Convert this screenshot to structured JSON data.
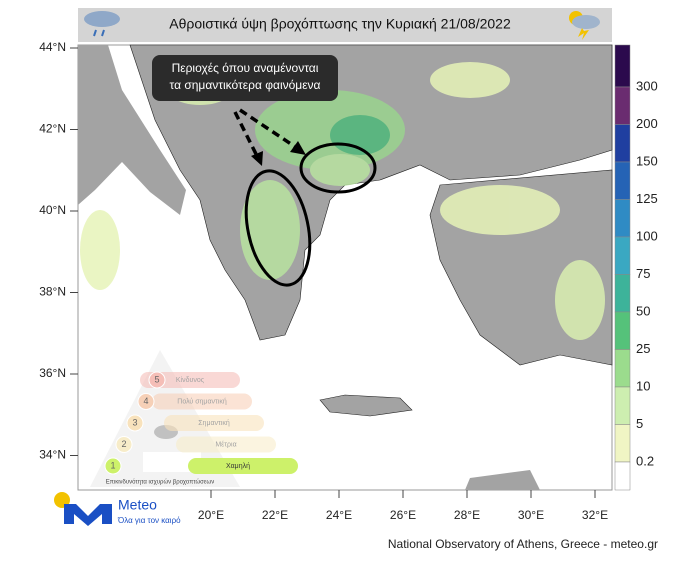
{
  "header": {
    "title": "Αθροιστικά ύψη βροχόπτωσης την Κυριακή 21/08/2022"
  },
  "annotation": {
    "lines": [
      "Περιοχές όπου αναμένονται",
      "τα σημαντικότερα φαινόμενα"
    ]
  },
  "map": {
    "lat_labels": [
      "44°N",
      "42°N",
      "40°N",
      "38°N",
      "36°N",
      "34°N"
    ],
    "lon_labels": [
      "20°E",
      "22°E",
      "24°E",
      "26°E",
      "28°E",
      "30°E",
      "32°E"
    ]
  },
  "colorbar": {
    "labels": [
      "300",
      "200",
      "150",
      "125",
      "100",
      "75",
      "50",
      "25",
      "10",
      "5",
      "0.2"
    ]
  },
  "risk_scale": {
    "levels": [
      {
        "number": "5",
        "label": "Κίνδυνος"
      },
      {
        "number": "4",
        "label": "Πολύ σημαντική"
      },
      {
        "number": "3",
        "label": "Σημαντική"
      },
      {
        "number": "2",
        "label": "Μέτρια"
      },
      {
        "number": "1",
        "label": "Χαμηλή"
      }
    ],
    "caption": "Επικινδυνότητα ισχυρών βροχοπτώσεων"
  },
  "logo": {
    "name": "Meteo",
    "tagline": "Όλα για τον καιρό"
  },
  "footer": "National Observatory of Athens, Greece - meteo.gr"
}
